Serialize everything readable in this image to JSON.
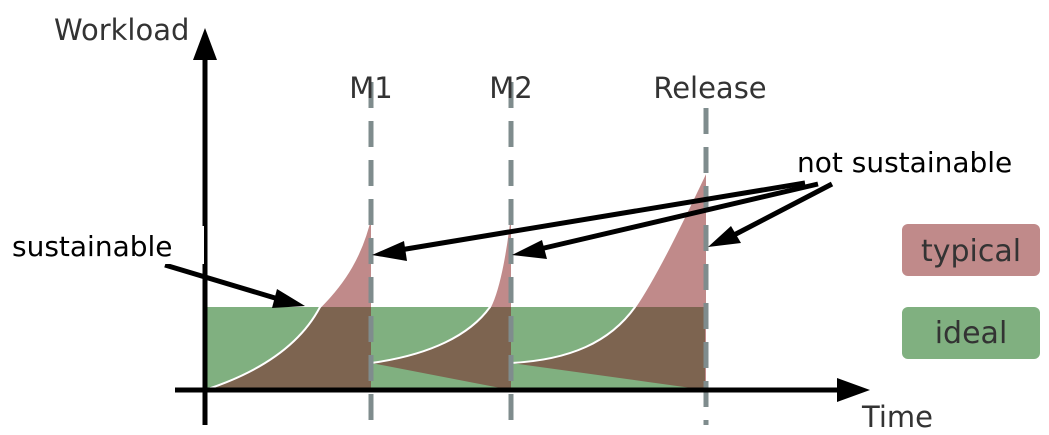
{
  "axes": {
    "y_label": "Workload",
    "x_label": "Time"
  },
  "milestones": [
    {
      "label": "M1"
    },
    {
      "label": "M2"
    },
    {
      "label": "Release"
    }
  ],
  "callouts": {
    "sustainable": "sustainable",
    "not_sustainable": "not sustainable"
  },
  "legend": [
    {
      "label": "typical",
      "color": "#c08a8a"
    },
    {
      "label": "ideal",
      "color": "#80b080"
    }
  ],
  "colors": {
    "typical": "#c08a8a",
    "ideal": "#80b080",
    "overlap": "#7d6450",
    "milestone_line": "#7f8c8d",
    "axis": "#000000"
  }
}
